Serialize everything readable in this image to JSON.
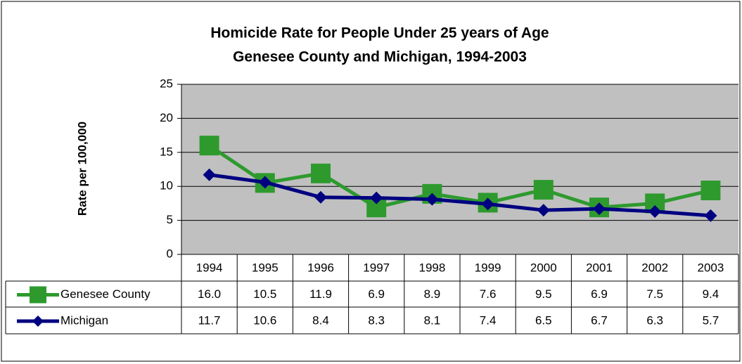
{
  "chart_data": {
    "type": "line",
    "title": "Homicide Rate for People Under 25 years of Age",
    "subtitle": "Genesee County and Michigan, 1994-2003",
    "y_label": "Rate per 100,000",
    "categories": [
      "1994",
      "1995",
      "1996",
      "1997",
      "1998",
      "1999",
      "2000",
      "2001",
      "2002",
      "2003"
    ],
    "series": [
      {
        "name": "Genesee County",
        "color": "#2e9a2e",
        "marker": "square",
        "values": [
          16,
          10.5,
          11.9,
          6.9,
          8.9,
          7.6,
          9.5,
          6.9,
          7.5,
          9.4
        ],
        "value_labels": [
          "16.0",
          "10.5",
          "11.9",
          "6.9",
          "8.9",
          "7.6",
          "9.5",
          "6.9",
          "7.5",
          "9.4"
        ]
      },
      {
        "name": "Michigan",
        "color": "#000080",
        "marker": "diamond",
        "values": [
          11.7,
          10.6,
          8.4,
          8.3,
          8.1,
          7.4,
          6.5,
          6.7,
          6.3,
          5.7
        ]
      }
    ],
    "ylim": [
      0,
      25
    ],
    "yticks": [
      0,
      5,
      10,
      15,
      20,
      25
    ],
    "grid": true,
    "data_table": true,
    "plot_background": "#c0c0c0"
  }
}
